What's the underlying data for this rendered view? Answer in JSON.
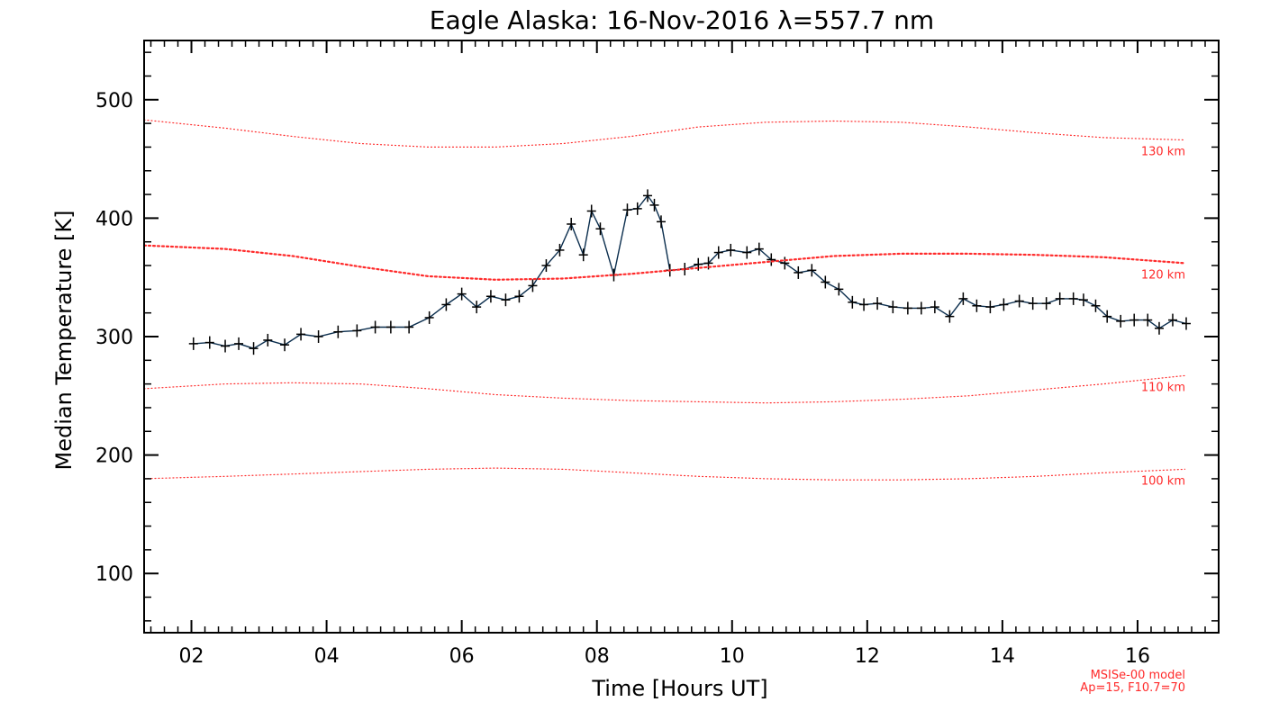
{
  "chart_data": {
    "type": "line",
    "title": "Eagle Alaska: 16-Nov-2016 λ=557.7 nm",
    "xlabel": "Time [Hours UT]",
    "ylabel": "Median Temperature [K]",
    "xlim": [
      1.3,
      17.2
    ],
    "ylim": [
      50,
      550
    ],
    "x_ticks": [
      2,
      4,
      6,
      8,
      10,
      12,
      14,
      16
    ],
    "x_tick_labels": [
      "02",
      "04",
      "06",
      "08",
      "10",
      "12",
      "14",
      "16"
    ],
    "y_ticks": [
      100,
      200,
      300,
      400,
      500
    ],
    "y_tick_labels": [
      "100",
      "200",
      "300",
      "400",
      "500"
    ],
    "grid": false,
    "colors": {
      "measured": "#0b2e4e",
      "marker": "#000000",
      "model": "#ff2a2a"
    },
    "series": [
      {
        "style": "line-with-plus-markers",
        "x": [
          2.03,
          2.27,
          2.5,
          2.7,
          2.92,
          3.13,
          3.38,
          3.62,
          3.88,
          4.17,
          4.45,
          4.72,
          4.95,
          5.22,
          5.52,
          5.77,
          6.0,
          6.22,
          6.43,
          6.65,
          6.85,
          7.05,
          7.25,
          7.45,
          7.62,
          7.8,
          7.92,
          8.05,
          8.25,
          8.45,
          8.6,
          8.75,
          8.85,
          8.95,
          9.08,
          9.3,
          9.5,
          9.65,
          9.8,
          9.98,
          10.22,
          10.4,
          10.58,
          10.78,
          10.98,
          11.18,
          11.38,
          11.58,
          11.78,
          11.95,
          12.15,
          12.38,
          12.6,
          12.8,
          13.0,
          13.22,
          13.42,
          13.62,
          13.82,
          14.02,
          14.25,
          14.45,
          14.65,
          14.85,
          15.05,
          15.2,
          15.38,
          15.55,
          15.75,
          15.95,
          16.15,
          16.32,
          16.52,
          16.72
        ],
        "y": [
          294,
          295,
          292,
          294,
          290,
          297,
          293,
          302,
          300,
          304,
          305,
          308,
          308,
          308,
          316,
          327,
          336,
          325,
          334,
          331,
          334,
          343,
          360,
          373,
          395,
          369,
          406,
          391,
          352,
          407,
          408,
          419,
          411,
          397,
          356,
          357,
          361,
          362,
          371,
          373,
          371,
          374,
          365,
          362,
          354,
          356,
          346,
          340,
          329,
          327,
          328,
          325,
          324,
          324,
          325,
          317,
          332,
          326,
          325,
          327,
          330,
          328,
          328,
          332,
          332,
          331,
          326,
          317,
          313,
          314,
          314,
          307,
          314,
          311
        ]
      },
      {
        "name": "130 km",
        "style": "dotted-thin",
        "x": [
          1.3,
          2.5,
          3.5,
          4.5,
          5.5,
          6.5,
          7.5,
          8.5,
          9.5,
          10.5,
          11.5,
          12.5,
          13.5,
          14.5,
          15.5,
          16.7
        ],
        "y": [
          483,
          476,
          469,
          463,
          460,
          460,
          463,
          469,
          477,
          481,
          482,
          481,
          477,
          472,
          468,
          466
        ]
      },
      {
        "name": "120 km",
        "style": "dotted-thick",
        "x": [
          1.3,
          2.5,
          3.5,
          4.5,
          5.5,
          6.5,
          7.5,
          8.5,
          9.5,
          10.5,
          11.5,
          12.5,
          13.5,
          14.5,
          15.5,
          16.7
        ],
        "y": [
          377,
          374,
          368,
          359,
          351,
          348,
          349,
          353,
          358,
          363,
          368,
          370,
          370,
          369,
          367,
          362
        ]
      },
      {
        "name": "110 km",
        "style": "dotted-thin",
        "x": [
          1.3,
          2.5,
          3.5,
          4.5,
          5.5,
          6.5,
          7.5,
          8.5,
          9.5,
          10.5,
          11.5,
          12.5,
          13.5,
          14.5,
          15.5,
          16.7
        ],
        "y": [
          256,
          260,
          261,
          260,
          256,
          251,
          248,
          246,
          245,
          244,
          245,
          247,
          250,
          255,
          260,
          267
        ]
      },
      {
        "name": "100 km",
        "style": "dotted-thin",
        "x": [
          1.3,
          2.5,
          3.5,
          4.5,
          5.5,
          6.5,
          7.5,
          8.5,
          9.5,
          10.5,
          11.5,
          12.5,
          13.5,
          14.5,
          15.5,
          16.7
        ],
        "y": [
          180,
          182,
          184,
          186,
          188,
          189,
          188,
          185,
          182,
          180,
          179,
          179,
          180,
          182,
          185,
          188
        ]
      }
    ],
    "annotation": [
      "MSISe-00 model",
      "Ap=15, F10.7=70"
    ]
  }
}
